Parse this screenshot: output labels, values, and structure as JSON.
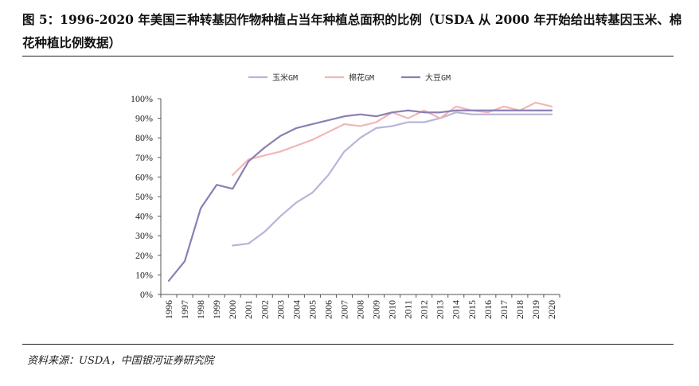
{
  "header": {
    "title": "图 5：1996-2020 年美国三种转基因作物种植占当年种植总面积的比例（USDA 从 2000 年开始给出转基因玉米、棉花种植比例数据）"
  },
  "footer": {
    "source": "资料来源：USDA，中国银河证券研究院"
  },
  "chart_data": {
    "type": "line",
    "x": [
      "1996",
      "1997",
      "1998",
      "1999",
      "2000",
      "2001",
      "2002",
      "2003",
      "2004",
      "2005",
      "2006",
      "2007",
      "2008",
      "2009",
      "2010",
      "2011",
      "2012",
      "2013",
      "2014",
      "2015",
      "2016",
      "2017",
      "2018",
      "2019",
      "2020"
    ],
    "ylim": [
      0,
      100
    ],
    "yticks": [
      0,
      10,
      20,
      30,
      40,
      50,
      60,
      70,
      80,
      90,
      100
    ],
    "ytick_labels": [
      "0%",
      "10%",
      "20%",
      "30%",
      "40%",
      "50%",
      "60%",
      "70%",
      "80%",
      "90%",
      "100%"
    ],
    "legend_position": "top",
    "grid": false,
    "series": [
      {
        "name": "玉米GM",
        "color": "#b7b4da",
        "values": [
          null,
          null,
          null,
          null,
          25,
          26,
          32,
          40,
          47,
          52,
          61,
          73,
          80,
          85,
          86,
          88,
          88,
          90,
          93,
          92,
          92,
          92,
          92,
          92,
          92
        ]
      },
      {
        "name": "棉花GM",
        "color": "#f2b6b6",
        "values": [
          null,
          null,
          null,
          null,
          61,
          69,
          71,
          73,
          76,
          79,
          83,
          87,
          86,
          88,
          93,
          90,
          94,
          90,
          96,
          94,
          93,
          96,
          94,
          98,
          96
        ]
      },
      {
        "name": "大豆GM",
        "color": "#8a7fb3",
        "values": [
          7,
          17,
          44,
          56,
          54,
          68,
          75,
          81,
          85,
          87,
          89,
          91,
          92,
          91,
          93,
          94,
          93,
          93,
          94,
          94,
          94,
          94,
          94,
          94,
          94
        ]
      }
    ]
  }
}
